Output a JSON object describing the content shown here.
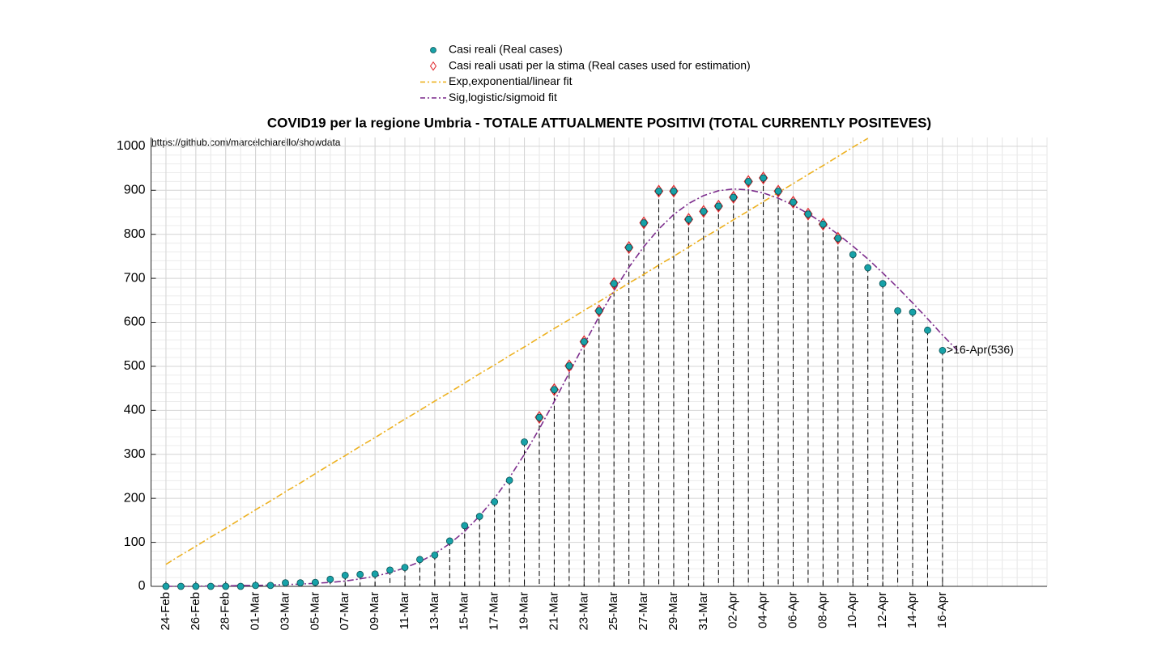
{
  "chart_data": {
    "type": "line",
    "title": "COVID19 per la regione Umbria - TOTALE ATTUALMENTE POSITIVI (TOTAL CURRENTLY POSITEVES)",
    "source": "https://github.com/marcelchiarello/showdata",
    "annotation": ">16-Apr(536)",
    "categories": [
      "24-Feb",
      null,
      "26-Feb",
      null,
      "28-Feb",
      null,
      "01-Mar",
      null,
      "03-Mar",
      null,
      "05-Mar",
      null,
      "07-Mar",
      null,
      "09-Mar",
      null,
      "11-Mar",
      null,
      "13-Mar",
      null,
      "15-Mar",
      null,
      "17-Mar",
      null,
      "19-Mar",
      null,
      "21-Mar",
      null,
      "23-Mar",
      null,
      "25-Mar",
      null,
      "27-Mar",
      null,
      "29-Mar",
      null,
      "31-Mar",
      null,
      "02-Apr",
      null,
      "04-Apr",
      null,
      "06-Apr",
      null,
      "08-Apr",
      null,
      "10-Apr",
      null,
      "12-Apr",
      null,
      "14-Apr",
      null,
      "16-Apr",
      null
    ],
    "xlim": [
      -1,
      59
    ],
    "ylim": [
      0,
      1020
    ],
    "yticks": [
      0,
      100,
      200,
      300,
      400,
      500,
      600,
      700,
      800,
      900,
      1000
    ],
    "grid": true,
    "legend": "top",
    "series": [
      {
        "name": "Casi reali (Real cases)",
        "color": "#17a2a8",
        "style": "dot",
        "values": [
          0,
          0,
          0,
          0,
          0,
          0,
          2,
          2,
          8,
          8,
          9,
          16,
          25,
          27,
          28,
          37,
          43,
          61,
          71,
          103,
          138,
          159,
          192,
          241,
          328,
          384,
          447,
          501,
          556,
          626,
          688,
          770,
          826,
          898,
          898,
          834,
          852,
          864,
          884,
          920,
          928,
          898,
          873,
          846,
          823,
          791,
          754,
          724,
          688,
          626,
          623,
          582,
          536,
          null
        ]
      },
      {
        "name": "Casi reali usati per la stima (Real cases used for estimation)",
        "color": "#e0282d",
        "style": "diamond",
        "values": [
          null,
          null,
          null,
          null,
          null,
          null,
          null,
          null,
          null,
          null,
          null,
          null,
          null,
          null,
          null,
          null,
          null,
          null,
          null,
          null,
          null,
          null,
          null,
          null,
          null,
          384,
          447,
          501,
          556,
          626,
          688,
          770,
          826,
          898,
          898,
          834,
          852,
          864,
          884,
          920,
          928,
          898,
          873,
          846,
          823,
          791,
          null,
          null,
          null,
          null,
          null,
          null,
          null,
          null
        ]
      },
      {
        "name": "Exp,exponential/linear fit",
        "color": "#edb120",
        "style": "dashdot",
        "values": [
          50,
          71,
          91,
          112,
          132,
          153,
          174,
          194,
          215,
          235,
          256,
          277,
          297,
          318,
          338,
          359,
          380,
          400,
          421,
          441,
          462,
          483,
          503,
          524,
          544,
          565,
          586,
          606,
          627,
          647,
          668,
          689,
          709,
          730,
          750,
          771,
          792,
          812,
          833,
          853,
          874,
          895,
          915,
          936,
          956,
          977,
          998,
          1018,
          null,
          null,
          null,
          null,
          null,
          null
        ]
      },
      {
        "name": "Sig,logistic/sigmoid fit",
        "color": "#7e2f8e",
        "style": "dashdot",
        "values": [
          0,
          0,
          0,
          1,
          1,
          2,
          2,
          3,
          4,
          5,
          7,
          9,
          12,
          17,
          23,
          31,
          42,
          56,
          74,
          97,
          125,
          160,
          200,
          247,
          300,
          358,
          420,
          485,
          550,
          613,
          672,
          725,
          772,
          812,
          845,
          870,
          888,
          899,
          903,
          901,
          894,
          882,
          866,
          847,
          825,
          800,
          773,
          744,
          712,
          679,
          644,
          608,
          571,
          536
        ]
      }
    ]
  }
}
